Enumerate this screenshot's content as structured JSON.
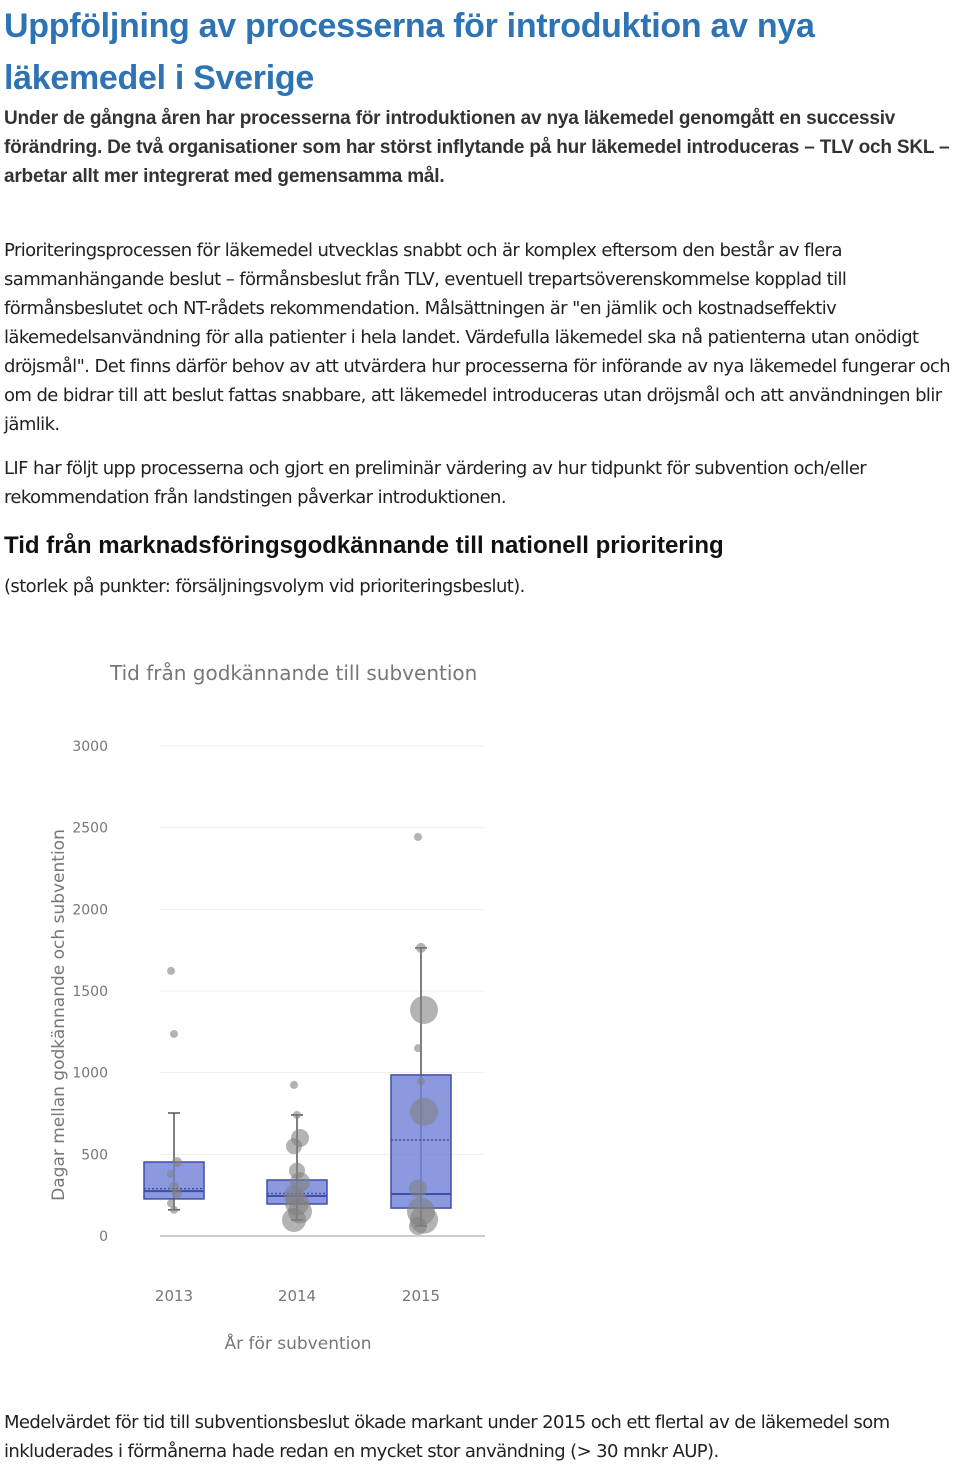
{
  "header": {
    "title": "Uppföljning av processerna för introduktion av nya läkemedel i Sverige",
    "lead": "Under de gångna åren har processerna för introduktionen av nya läkemedel genomgått en successiv förändring. De två organisationer som har störst inflytande på hur läkemedel introduceras – TLV och SKL – arbetar allt mer integrerat med gemensamma mål."
  },
  "body": {
    "paragraphs": [
      "Prioriteringsprocessen för läkemedel utvecklas snabbt och är komplex eftersom den består av flera sammanhängande beslut – förmånsbeslut från TLV, eventuell trepartsöverenskommelse kopplad till förmånsbeslutet och NT-rådets rekommendation. Målsättningen är \"en jämlik och kostnadseffektiv läkemedelsanvändning för alla patienter i hela landet. Värdefulla läkemedel ska nå patienterna utan onödigt dröjsmål\". Det finns därför behov av att utvärdera hur processerna för införande av nya läkemedel fungerar och om de bidrar till att beslut fattas snabbare, att läkemedel introduceras utan dröjsmål och att användningen blir jämlik.",
      "LIF har följt upp processerna och gjort en preliminär värdering av hur tidpunkt för subvention och/eller rekommendation från landstingen påverkar introduktionen."
    ]
  },
  "section": {
    "heading": "Tid från marknadsföringsgodkännande till nationell prioritering",
    "note": "(storlek på punkter: försäljningsvolym vid prioriteringsbeslut)."
  },
  "chart_data": {
    "type": "box",
    "title": "Tid från godkännande till subvention",
    "x_label": "År för subvention",
    "y_label": "Dagar mellan godkännande och subvention",
    "categories": [
      "2013",
      "2014",
      "2015"
    ],
    "boxes": [
      {
        "min": 160,
        "q1": 227,
        "median": 275,
        "q3": 453,
        "max": 753,
        "mean": 290
      },
      {
        "min": 98,
        "q1": 196,
        "median": 245,
        "q3": 343,
        "max": 741,
        "mean": 260
      },
      {
        "min": 61,
        "q1": 171,
        "median": 257,
        "q3": 986,
        "max": 1764,
        "mean": 588
      }
    ],
    "points": [
      {
        "values": [
          1623,
          1237,
          453,
          380,
          300,
          260,
          200,
          160
        ],
        "sizes": [
          4,
          4,
          5,
          4,
          5,
          5,
          4,
          4
        ]
      },
      {
        "values": [
          925,
          741,
          600,
          550,
          400,
          330,
          250,
          200,
          150,
          98
        ],
        "sizes": [
          4,
          4,
          9,
          8,
          8,
          10,
          10,
          12,
          12,
          12
        ]
      },
      {
        "values": [
          2443,
          1764,
          1384,
          1150,
          945,
          760,
          290,
          150,
          100,
          61
        ],
        "sizes": [
          4,
          5,
          14,
          4,
          4,
          14,
          9,
          14,
          14,
          9
        ]
      }
    ],
    "color": "#6f7fd6",
    "edge_color": "#3f4fa8",
    "point_color": "#808080",
    "ylim": [
      0,
      3000
    ],
    "yticks": [
      0,
      500,
      1000,
      1500,
      2000,
      2500,
      3000
    ],
    "grid": true
  },
  "footer": {
    "paragraph": "Medelvärdet för tid till subventionsbeslut ökade markant under 2015 och ett flertal av de läkemedel som inkluderades i förmånerna hade redan en mycket stor användning (> 30 mnkr AUP)."
  }
}
